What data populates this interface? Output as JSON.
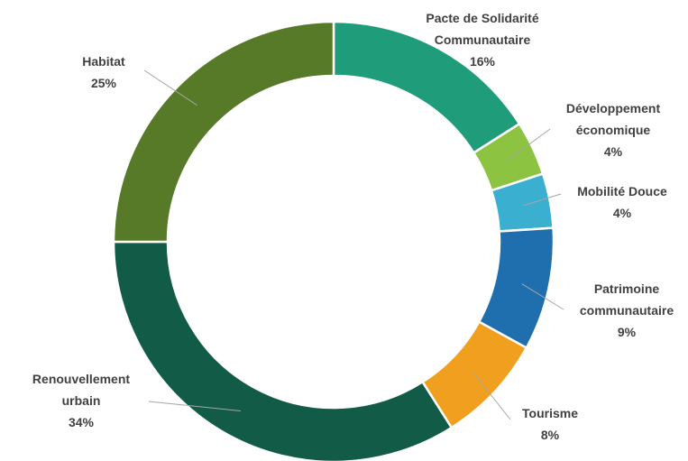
{
  "chart_data": {
    "type": "donut",
    "categories": [
      "Pacte de Solidarité Communautaire",
      "Développement économique",
      "Mobilité Douce",
      "Patrimoine communautaire",
      "Tourisme",
      "Renouvellement urbain",
      "Habitat"
    ],
    "values": [
      16,
      4,
      4,
      9,
      8,
      34,
      25
    ],
    "value_labels": [
      "16%",
      "4%",
      "4%",
      "9%",
      "8%",
      "34%",
      "25%"
    ],
    "colors": [
      "#1f9c7a",
      "#8cc341",
      "#3aafcf",
      "#1f6ead",
      "#f09f1e",
      "#125c47",
      "#567a27"
    ]
  }
}
